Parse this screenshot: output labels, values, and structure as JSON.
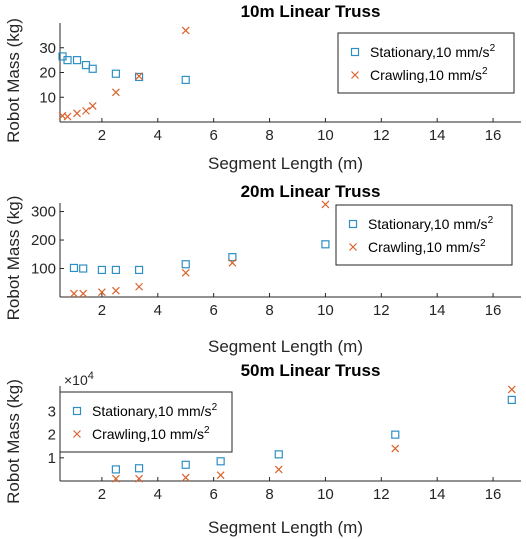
{
  "chart_data": [
    {
      "type": "scatter",
      "title": "10m Linear Truss",
      "xlabel": "Segment Length (m)",
      "ylabel": "Robot Mass (kg)",
      "xlim": [
        0.5,
        17
      ],
      "ylim": [
        0,
        40
      ],
      "xticks": [
        2,
        4,
        6,
        8,
        10,
        12,
        14,
        16
      ],
      "yticks": [
        10,
        20,
        30
      ],
      "grid": false,
      "legend_position": "top-right",
      "series": [
        {
          "name": "Stationary,10 mm/s",
          "marker": "square",
          "color": "#2f8fc4",
          "x": [
            0.59,
            0.77,
            1.11,
            1.43,
            1.67,
            2.5,
            3.33,
            5.0
          ],
          "y": [
            26.5,
            25,
            25,
            23,
            21.5,
            19.5,
            18.2,
            17
          ]
        },
        {
          "name": "Crawling,10 mm/s",
          "marker": "x",
          "color": "#d9632c",
          "x": [
            0.59,
            0.77,
            1.11,
            1.43,
            1.67,
            2.5,
            3.33,
            5.0
          ],
          "y": [
            2.5,
            2.2,
            3.5,
            4.5,
            6.5,
            12,
            18.5,
            37
          ]
        }
      ]
    },
    {
      "type": "scatter",
      "title": "20m Linear Truss",
      "xlabel": "Segment Length (m)",
      "ylabel": "Robot Mass (kg)",
      "xlim": [
        0.5,
        17
      ],
      "ylim": [
        0,
        330
      ],
      "xticks": [
        2,
        4,
        6,
        8,
        10,
        12,
        14,
        16
      ],
      "yticks": [
        100,
        200,
        300
      ],
      "grid": false,
      "legend_position": "top-right",
      "series": [
        {
          "name": "Stationary,10 mm/s",
          "marker": "square",
          "color": "#2f8fc4",
          "x": [
            1.0,
            1.33,
            2.0,
            2.5,
            3.33,
            5.0,
            6.67,
            10.0
          ],
          "y": [
            102,
            100,
            95,
            95,
            95,
            115,
            140,
            185
          ]
        },
        {
          "name": "Crawling,10 mm/s",
          "marker": "x",
          "color": "#d9632c",
          "x": [
            1.0,
            1.33,
            2.0,
            2.5,
            3.33,
            5.0,
            6.67,
            10.0
          ],
          "y": [
            12,
            12,
            17,
            22,
            36,
            85,
            120,
            325
          ]
        }
      ]
    },
    {
      "type": "scatter",
      "title": "50m Linear Truss",
      "xlabel": "Segment Length (m)",
      "ylabel": "Robot Mass (kg)",
      "xlim": [
        0.5,
        17
      ],
      "ylim": [
        0,
        41000
      ],
      "xticks": [
        2,
        4,
        6,
        8,
        10,
        12,
        14,
        16
      ],
      "yticks": [
        10000,
        20000,
        30000
      ],
      "ytick_labels": [
        "1",
        "2",
        "3"
      ],
      "exponent_base": "×10",
      "exponent_power": "4",
      "grid": false,
      "legend_position": "top-left",
      "series": [
        {
          "name": "Stationary,10 mm/s",
          "marker": "square",
          "color": "#2f8fc4",
          "x": [
            2.5,
            3.33,
            5.0,
            6.25,
            8.33,
            12.5,
            16.67
          ],
          "y": [
            5000,
            5500,
            7000,
            8500,
            11500,
            20000,
            35000
          ]
        },
        {
          "name": "Crawling,10 mm/s",
          "marker": "x",
          "color": "#d9632c",
          "x": [
            2.5,
            3.33,
            5.0,
            6.25,
            8.33,
            12.5,
            16.67
          ],
          "y": [
            1000,
            1000,
            1500,
            2500,
            5000,
            14000,
            39500
          ]
        }
      ]
    }
  ]
}
